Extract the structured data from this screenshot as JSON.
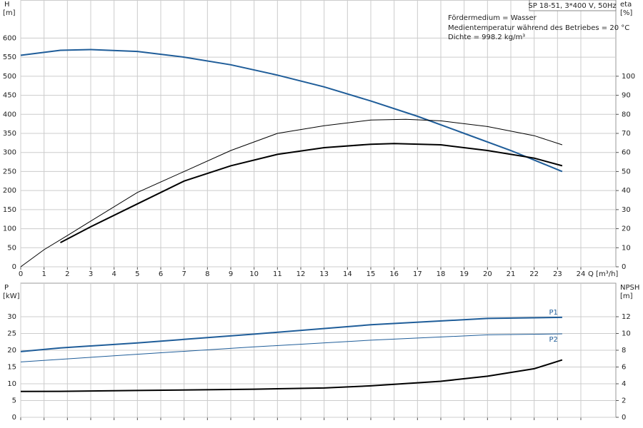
{
  "model": "SP 18-51, 3*400 V, 50Hz",
  "annotations": [
    "Fördermedium = Wasser",
    "Medientemperatur während des Betriebes = 20 °C",
    "Dichte = 998.2 kg/m³"
  ],
  "chart_data": [
    {
      "type": "line",
      "xlabel": "Q [m³/h]",
      "ylabel": "H",
      "yunit": "[m]",
      "y2label": "eta",
      "y2unit": "[%]",
      "xlim": [
        0,
        25.5
      ],
      "xticks": [
        0,
        1,
        2,
        3,
        4,
        5,
        6,
        7,
        8,
        9,
        10,
        11,
        12,
        13,
        14,
        15,
        16,
        17,
        18,
        19,
        20,
        21,
        22,
        23,
        24
      ],
      "ylim": [
        0,
        700
      ],
      "yticks": [
        0,
        50,
        100,
        150,
        200,
        250,
        300,
        350,
        400,
        450,
        500,
        550,
        600
      ],
      "y2lim": [
        0,
        140
      ],
      "y2ticks": [
        0,
        10,
        20,
        30,
        40,
        50,
        60,
        70,
        80,
        90,
        100
      ],
      "grid": true,
      "series": [
        {
          "color": "#1f5d99",
          "width": 2,
          "x": [
            0,
            1.7,
            3,
            5,
            7,
            9,
            11,
            13,
            15,
            17,
            19,
            21,
            23.2
          ],
          "values": [
            555,
            568,
            570,
            565,
            550,
            530,
            503,
            472,
            435,
            395,
            350,
            305,
            250
          ]
        },
        {
          "color": "#000000",
          "width": 1,
          "axis": "y2",
          "x": [
            0,
            1,
            2,
            3,
            5,
            7,
            9,
            11,
            13,
            15,
            16.5,
            18,
            20,
            22,
            23.2
          ],
          "values": [
            0,
            9,
            16.4,
            24,
            39,
            50,
            61,
            70,
            74,
            77,
            77.4,
            76.6,
            73.6,
            68.8,
            64
          ]
        },
        {
          "color": "#000000",
          "width": 2,
          "axis": "y2",
          "x": [
            1.7,
            3,
            5,
            7,
            9,
            11,
            13,
            15,
            16,
            18,
            20,
            22,
            23.2
          ],
          "values": [
            12.7,
            21,
            33,
            45,
            53,
            59,
            62.5,
            64.3,
            64.7,
            64,
            61,
            57,
            53
          ]
        }
      ]
    },
    {
      "type": "line",
      "ylabel": "P",
      "yunit": "[kW]",
      "y2label": "NPSH",
      "y2unit": "[m]",
      "xlim": [
        0,
        25.5
      ],
      "xticks": [
        0,
        1,
        2,
        3,
        4,
        5,
        6,
        7,
        8,
        9,
        10,
        11,
        12,
        13,
        14,
        15,
        16,
        17,
        18,
        19,
        20,
        21,
        22,
        23,
        24
      ],
      "ylim": [
        0,
        40
      ],
      "yticks": [
        0,
        5,
        10,
        15,
        20,
        25,
        30
      ],
      "y2lim": [
        0,
        16
      ],
      "y2ticks": [
        0,
        2,
        4,
        6,
        8,
        10,
        12
      ],
      "grid": true,
      "series": [
        {
          "name": "P1",
          "color": "#1f5d99",
          "width": 2,
          "x": [
            0,
            1.7,
            5,
            10,
            15,
            20,
            23.2
          ],
          "values": [
            19.6,
            20.7,
            22.2,
            24.8,
            27.6,
            29.5,
            29.8
          ]
        },
        {
          "name": "P2",
          "color": "#1f5d99",
          "width": 1,
          "x": [
            0,
            5,
            10,
            15,
            20,
            23.2
          ],
          "values": [
            16.5,
            18.8,
            21,
            23,
            24.6,
            24.9
          ]
        },
        {
          "color": "#000000",
          "width": 2,
          "axis": "y2",
          "x": [
            0,
            1.7,
            5,
            10,
            13,
            15,
            18,
            20,
            22,
            23.2
          ],
          "values": [
            3.08,
            3.1,
            3.2,
            3.35,
            3.5,
            3.75,
            4.3,
            4.9,
            5.8,
            6.84
          ]
        }
      ]
    }
  ]
}
